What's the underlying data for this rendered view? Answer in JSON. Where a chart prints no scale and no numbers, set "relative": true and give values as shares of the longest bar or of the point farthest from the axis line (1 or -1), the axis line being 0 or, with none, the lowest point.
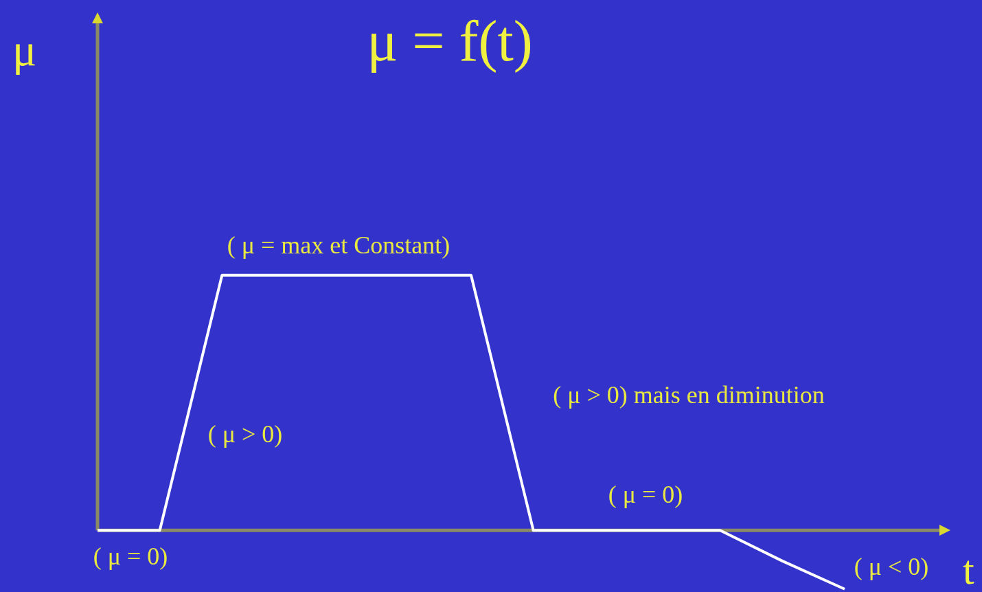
{
  "chart_data": {
    "type": "line",
    "title": "μ = f(t)",
    "xlabel": "t",
    "ylabel": "μ",
    "relative": true,
    "legend": false,
    "marker": "none",
    "line_style": "solid",
    "categories": [
      null,
      null,
      null,
      null,
      null,
      null,
      null,
      null,
      null,
      null,
      null,
      null,
      null
    ],
    "series": [
      {
        "color": "#ffffff",
        "values": [
          0,
          0,
          1,
          1,
          1,
          1,
          1,
          0,
          0,
          0,
          0,
          -0.12,
          -0.23
        ]
      }
    ],
    "annotations": [
      "( μ = max et Constant)",
      "( μ > 0)",
      "( μ > 0) mais en diminution",
      "( μ = 0)",
      "( μ = 0)",
      "( μ < 0)"
    ]
  }
}
